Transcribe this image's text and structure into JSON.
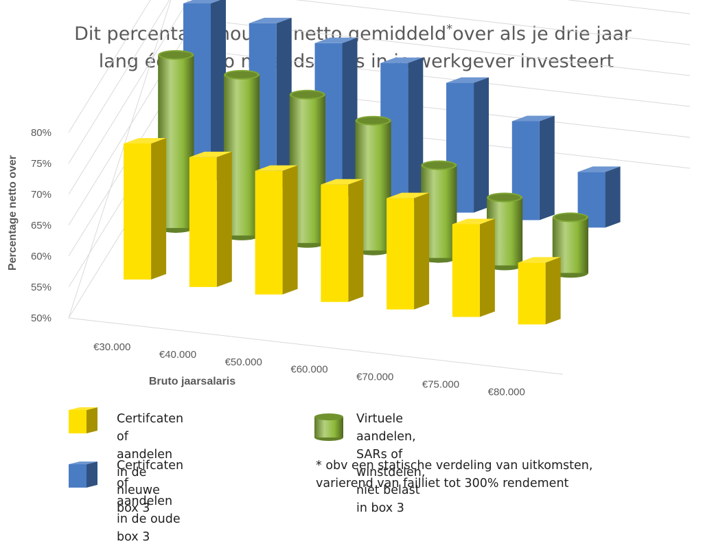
{
  "chart_data": {
    "type": "bar",
    "subtype": "3d-clustered-column",
    "title_line1": "Dit percentage houd je netto gemiddeld",
    "title_asterisk": "*",
    "title_line1_rest": "over als je drie jaar",
    "title_line2": "lang één bruto maandsalaris in je werkgever investeert",
    "xlabel": "Bruto jaarsalaris",
    "ylabel": "Percentage netto over",
    "ylim": [
      50,
      80
    ],
    "yticks": [
      "50%",
      "55%",
      "60%",
      "65%",
      "70%",
      "75%",
      "80%"
    ],
    "categories": [
      "€30.000",
      "€40.000",
      "€50.000",
      "€60.000",
      "€70.000",
      "€75.000",
      "€80.000"
    ],
    "series": [
      {
        "name": "Certifcaten of aandelen in de nieuwe box 3",
        "shape": "box",
        "color": "#FFE100",
        "values": [
          72,
          71,
          70,
          69,
          68,
          65,
          60
        ]
      },
      {
        "name": "Virtuele aandelen, SARs of winstdelen, niet belast in box 3",
        "shape": "cylinder",
        "color": "#8DB83A",
        "values": [
          78,
          76,
          74,
          71,
          65,
          61,
          59
        ]
      },
      {
        "name": "Certifcaten of aandelen in de oude box 3",
        "shape": "box",
        "color": "#4A7CC4",
        "values": [
          79,
          77,
          75,
          73,
          71,
          66,
          59
        ]
      }
    ]
  },
  "legend": {
    "item1": "Certifcaten of aandelen\nin de nieuwe box 3",
    "item2": "Virtuele aandelen, SARs of\nwinstdelen, niet belast in box 3",
    "item3": "Certifcaten of aandelen\nin de oude box 3"
  },
  "footnote": "* obv een statische verdeling van uitkomsten,\n   varierend van failliet tot 300% rendement"
}
